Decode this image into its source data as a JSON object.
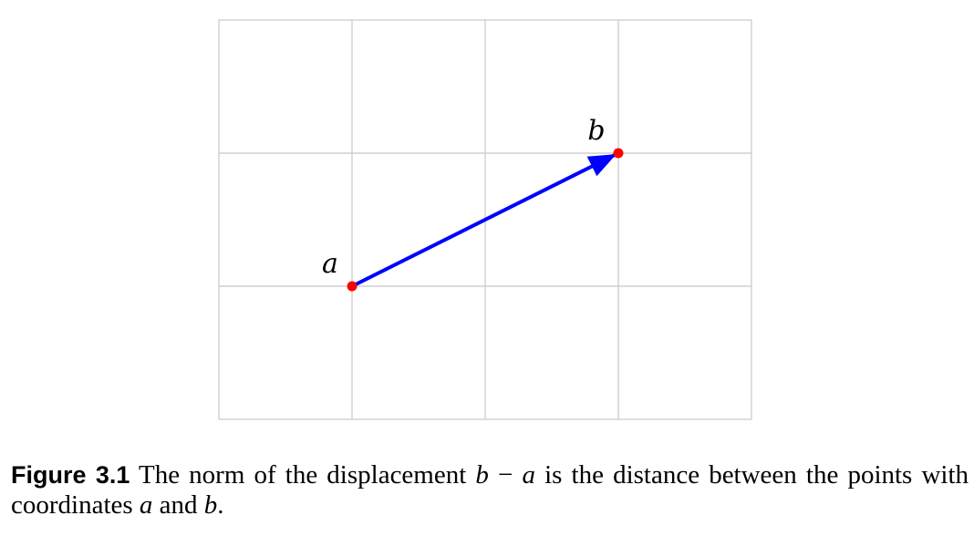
{
  "diagram": {
    "grid": {
      "columns": 4,
      "rows": 3
    },
    "points": [
      {
        "id": "a",
        "label": "a",
        "grid_col": 1,
        "grid_row": 2
      },
      {
        "id": "b",
        "label": "b",
        "grid_col": 3,
        "grid_row": 1
      }
    ],
    "arrow": {
      "from": "a",
      "to": "b"
    },
    "colors": {
      "grid_line": "#c8c8c8",
      "point": "#ff0000",
      "arrow": "#0000ff"
    }
  },
  "caption": {
    "label": "Figure 3.1",
    "parts": [
      {
        "text": " The norm of the displacement ",
        "math": false
      },
      {
        "text": "b",
        "math": true
      },
      {
        "text": " − ",
        "math": false
      },
      {
        "text": "a",
        "math": true
      },
      {
        "text": " is the distance between the points with coordinates ",
        "math": false
      },
      {
        "text": "a",
        "math": true
      },
      {
        "text": " and ",
        "math": false
      },
      {
        "text": "b",
        "math": true
      },
      {
        "text": ".",
        "math": false
      }
    ]
  }
}
